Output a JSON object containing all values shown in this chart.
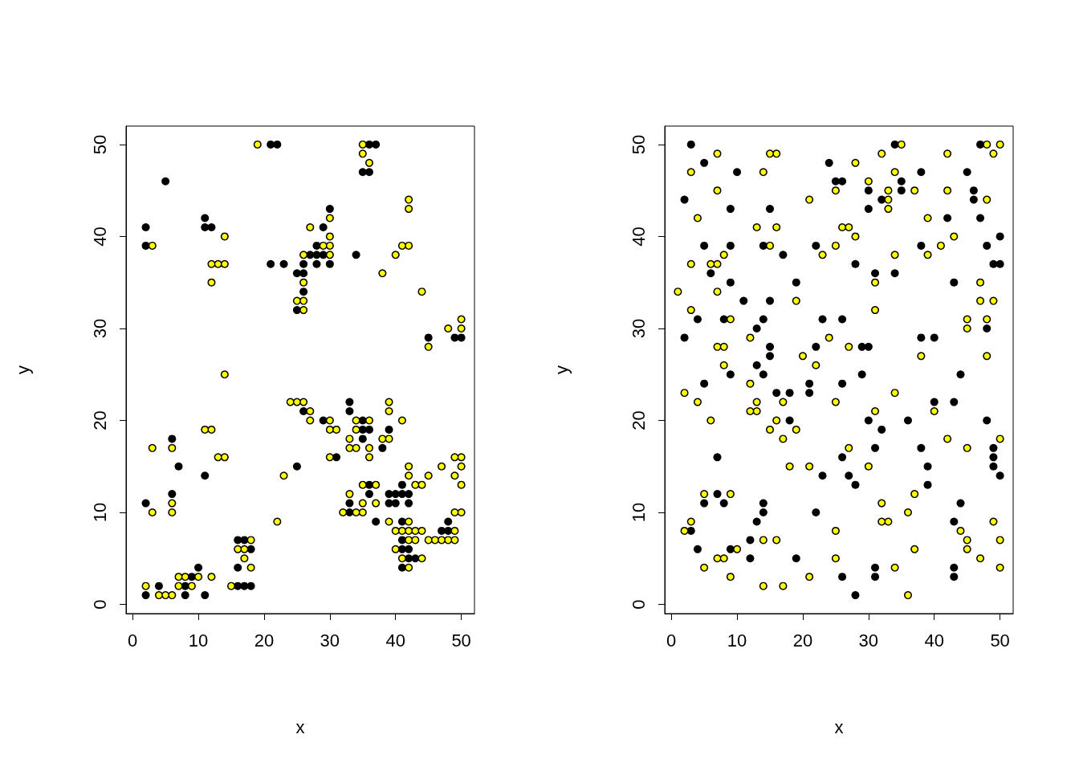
{
  "chart_data": [
    {
      "type": "scatter",
      "xlabel": "x",
      "ylabel": "y",
      "xlim": [
        -1,
        52
      ],
      "ylim": [
        -1,
        52
      ],
      "xticks": [
        0,
        10,
        20,
        30,
        40,
        50
      ],
      "yticks": [
        0,
        10,
        20,
        30,
        40,
        50
      ],
      "grid": false,
      "marker": "circle",
      "series": [
        {
          "color": "#000000",
          "x": [
            19,
            35,
            35,
            36,
            42,
            42,
            30,
            27,
            14,
            30,
            3,
            29,
            30,
            41,
            42,
            26,
            30,
            40,
            12,
            13,
            14,
            38,
            12,
            26,
            44,
            25,
            26,
            26,
            50,
            48,
            50,
            45,
            14,
            24,
            25,
            26,
            39,
            27,
            39,
            27,
            30,
            34,
            36,
            41,
            11,
            12,
            30,
            31,
            34,
            33,
            38,
            39,
            3,
            6,
            33,
            34,
            36,
            13,
            14,
            30,
            36,
            49,
            50,
            42,
            47,
            50,
            23,
            42,
            45,
            49,
            35,
            37,
            43,
            44,
            50,
            33,
            6,
            35,
            37,
            3,
            6,
            32,
            34,
            35,
            49,
            50,
            22,
            39,
            42,
            40,
            41,
            42,
            43,
            44,
            49,
            18,
            42,
            43,
            45,
            46,
            47,
            48,
            49,
            16,
            17,
            40,
            17,
            41,
            44,
            18,
            42,
            7,
            8,
            10,
            12,
            2,
            7,
            9,
            15,
            4,
            5,
            6,
            21,
            22,
            36,
            37,
            35,
            36,
            5,
            30,
            11,
            2,
            11,
            12,
            29,
            2,
            28,
            27,
            28,
            29,
            34,
            21,
            23,
            26,
            28,
            30,
            25,
            26,
            26,
            25,
            45,
            49,
            50,
            33,
            26,
            33,
            29,
            35,
            35,
            36,
            39,
            6,
            35,
            38,
            31,
            7,
            25,
            11,
            36,
            41,
            6,
            36,
            39,
            40,
            41,
            42,
            2,
            33,
            39,
            40,
            42,
            33,
            37,
            41,
            48,
            47,
            48,
            16,
            17,
            41,
            18,
            41,
            42,
            42,
            43,
            10,
            16,
            41,
            9,
            4,
            8,
            16,
            17,
            18,
            2,
            8,
            11
          ],
          "values": [
            50,
            50,
            49,
            48,
            44,
            43,
            42,
            41,
            40,
            40,
            39,
            39,
            39,
            39,
            39,
            38,
            38,
            38,
            37,
            37,
            37,
            36,
            35,
            35,
            34,
            33,
            33,
            32,
            31,
            30,
            30,
            28,
            25,
            22,
            22,
            22,
            22,
            21,
            21,
            20,
            20,
            20,
            20,
            20,
            19,
            19,
            19,
            19,
            19,
            18,
            18,
            18,
            17,
            17,
            17,
            17,
            17,
            16,
            16,
            16,
            16,
            16,
            16,
            15,
            15,
            15,
            14,
            14,
            14,
            14,
            13,
            13,
            13,
            13,
            13,
            12,
            11,
            11,
            11,
            10,
            10,
            10,
            10,
            10,
            10,
            10,
            9,
            9,
            9,
            8,
            8,
            8,
            8,
            8,
            8,
            7,
            7,
            7,
            7,
            7,
            7,
            7,
            7,
            6,
            6,
            6,
            5,
            5,
            5,
            4,
            4,
            3,
            3,
            3,
            3,
            2,
            2,
            2,
            2,
            1,
            1,
            1,
            50,
            50,
            50,
            50,
            47,
            47,
            46,
            43,
            42,
            41,
            41,
            41,
            41,
            39,
            39,
            38,
            38,
            38,
            38,
            37,
            37,
            37,
            37,
            37,
            36,
            36,
            34,
            32,
            29,
            29,
            29,
            22,
            21,
            21,
            20,
            20,
            19,
            19,
            19,
            18,
            18,
            17,
            16,
            15,
            15,
            14,
            13,
            13,
            12,
            12,
            12,
            12,
            12,
            12,
            11,
            11,
            11,
            11,
            11,
            10,
            9,
            9,
            9,
            8,
            8,
            7,
            7,
            7,
            6,
            6,
            6,
            5,
            5,
            4,
            4,
            4,
            3,
            2,
            2,
            2,
            2,
            2,
            1,
            1,
            1
          ]
        },
        {
          "color": "#ffff00",
          "x": [
            19,
            35,
            35,
            36,
            42,
            42,
            30,
            27,
            14,
            30,
            3,
            29,
            30,
            41,
            42,
            26,
            30,
            40,
            12,
            13,
            14,
            38,
            12,
            26,
            44,
            25,
            26,
            26,
            50,
            48,
            50,
            45,
            14,
            24,
            25,
            26,
            39,
            27,
            39,
            27,
            30,
            34,
            36,
            41,
            11,
            12,
            30,
            31,
            34,
            33,
            38,
            39,
            3,
            6,
            33,
            34,
            36,
            13,
            14,
            30,
            36,
            49,
            50,
            42,
            47,
            50,
            23,
            42,
            45,
            49,
            35,
            37,
            43,
            44,
            50,
            33,
            6,
            35,
            37,
            3,
            6,
            32,
            34,
            35,
            49,
            50,
            22,
            39,
            42,
            40,
            41,
            42,
            43,
            44,
            49,
            18,
            42,
            43,
            45,
            46,
            47,
            48,
            49,
            16,
            17,
            40,
            17,
            41,
            44,
            18,
            42,
            7,
            8,
            10,
            12,
            2,
            7,
            9,
            15,
            4,
            5,
            6
          ],
          "values": [
            50,
            50,
            49,
            48,
            44,
            43,
            42,
            41,
            40,
            40,
            39,
            39,
            39,
            39,
            39,
            38,
            38,
            38,
            37,
            37,
            37,
            36,
            35,
            35,
            34,
            33,
            33,
            32,
            31,
            30,
            30,
            28,
            25,
            22,
            22,
            22,
            22,
            21,
            21,
            20,
            20,
            20,
            20,
            20,
            19,
            19,
            19,
            19,
            19,
            18,
            18,
            18,
            17,
            17,
            17,
            17,
            17,
            16,
            16,
            16,
            16,
            16,
            16,
            15,
            15,
            15,
            14,
            14,
            14,
            14,
            13,
            13,
            13,
            13,
            13,
            12,
            11,
            11,
            11,
            10,
            10,
            10,
            10,
            10,
            10,
            10,
            9,
            9,
            9,
            8,
            8,
            8,
            8,
            8,
            8,
            7,
            7,
            7,
            7,
            7,
            7,
            7,
            7,
            6,
            6,
            6,
            5,
            5,
            5,
            4,
            4,
            3,
            3,
            3,
            3,
            2,
            2,
            2,
            2,
            1,
            1,
            1
          ]
        }
      ]
    },
    {
      "type": "scatter",
      "xlabel": "x",
      "ylabel": "y",
      "xlim": [
        -1,
        52
      ],
      "ylim": [
        -1,
        52
      ],
      "xticks": [
        0,
        10,
        20,
        30,
        40,
        50
      ],
      "yticks": [
        0,
        10,
        20,
        30,
        40,
        50
      ],
      "grid": false,
      "marker": "circle",
      "series": [
        {
          "color": "#000000",
          "x": [
            35,
            48,
            50,
            7,
            15,
            16,
            32,
            42,
            49,
            28,
            3,
            14,
            34,
            30,
            7,
            25,
            33,
            37,
            42,
            21,
            33,
            48,
            33,
            4,
            39,
            13,
            16,
            26,
            27,
            28,
            43,
            15,
            25,
            41,
            8,
            23,
            34,
            39,
            3,
            6,
            7,
            31,
            47,
            1,
            7,
            19,
            47,
            49,
            3,
            31,
            9,
            45,
            48,
            45,
            12,
            24,
            7,
            8,
            27,
            20,
            38,
            48,
            8,
            22,
            12,
            2,
            34,
            4,
            13,
            17,
            25,
            12,
            13,
            31,
            40,
            6,
            16,
            15,
            19,
            17,
            42,
            50,
            27,
            45,
            18,
            21,
            30,
            5,
            9,
            37,
            32,
            36,
            3,
            32,
            33,
            49,
            2,
            25,
            44,
            14,
            16,
            45,
            50,
            10,
            37,
            45,
            7,
            8,
            25,
            47,
            5,
            34,
            50,
            9,
            21,
            14,
            17,
            36,
            3,
            34,
            47,
            5,
            24,
            10,
            38,
            45,
            25,
            26,
            35,
            30,
            35,
            46,
            2,
            32,
            46,
            9,
            15,
            30,
            42,
            47,
            50,
            5,
            9,
            14,
            22,
            38,
            48,
            17,
            28,
            49,
            50,
            6,
            31,
            34,
            9,
            19,
            43,
            11,
            15,
            4,
            8,
            14,
            23,
            26,
            13,
            48,
            2,
            38,
            40,
            15,
            22,
            29,
            30,
            15,
            13,
            9,
            14,
            29,
            44,
            5,
            21,
            26,
            16,
            18,
            21,
            40,
            43,
            18,
            30,
            36,
            48,
            32,
            31,
            38,
            49,
            7,
            26,
            49,
            39,
            49,
            23,
            27,
            50,
            28,
            39,
            7,
            5,
            8,
            14,
            44,
            14,
            22,
            13,
            43,
            3,
            12,
            4,
            9,
            12,
            19,
            31,
            43,
            26,
            31,
            43,
            28
          ],
          "values": [
            50,
            50,
            50,
            49,
            49,
            49,
            49,
            49,
            49,
            48,
            47,
            47,
            47,
            46,
            45,
            45,
            45,
            45,
            45,
            44,
            44,
            44,
            43,
            42,
            42,
            41,
            41,
            41,
            41,
            40,
            40,
            39,
            39,
            39,
            38,
            38,
            38,
            38,
            37,
            37,
            37,
            35,
            35,
            34,
            34,
            33,
            33,
            33,
            32,
            32,
            31,
            31,
            31,
            30,
            29,
            29,
            28,
            28,
            28,
            27,
            27,
            27,
            26,
            26,
            24,
            23,
            23,
            22,
            22,
            22,
            22,
            21,
            21,
            21,
            21,
            20,
            20,
            19,
            19,
            18,
            18,
            18,
            17,
            17,
            15,
            15,
            15,
            12,
            12,
            12,
            11,
            10,
            9,
            9,
            9,
            9,
            8,
            8,
            8,
            7,
            7,
            7,
            7,
            6,
            6,
            6,
            5,
            5,
            5,
            5,
            4,
            4,
            4,
            3,
            3,
            2,
            2,
            1,
            50,
            50,
            50,
            48,
            48,
            47,
            47,
            47,
            46,
            46,
            46,
            45,
            45,
            45,
            44,
            44,
            44,
            43,
            43,
            43,
            42,
            42,
            40,
            39,
            39,
            39,
            39,
            39,
            39,
            38,
            37,
            37,
            37,
            36,
            36,
            36,
            35,
            35,
            35,
            33,
            33,
            31,
            31,
            31,
            31,
            31,
            30,
            30,
            29,
            29,
            29,
            28,
            28,
            28,
            28,
            27,
            26,
            25,
            25,
            25,
            25,
            24,
            24,
            24,
            23,
            23,
            23,
            22,
            22,
            20,
            20,
            20,
            20,
            19,
            17,
            17,
            17,
            16,
            16,
            16,
            15,
            15,
            14,
            14,
            14,
            13,
            13,
            12,
            11,
            11,
            11,
            11,
            10,
            10,
            9,
            9,
            8,
            7,
            6,
            6,
            5,
            5,
            4,
            4,
            3,
            3,
            3,
            1
          ]
        },
        {
          "color": "#ffff00",
          "x": [
            35,
            48,
            50,
            7,
            15,
            16,
            32,
            42,
            49,
            28,
            3,
            14,
            34,
            30,
            7,
            25,
            33,
            37,
            42,
            21,
            33,
            48,
            33,
            4,
            39,
            13,
            16,
            26,
            27,
            28,
            43,
            15,
            25,
            41,
            8,
            23,
            34,
            39,
            3,
            6,
            7,
            31,
            47,
            1,
            7,
            19,
            47,
            49,
            3,
            31,
            9,
            45,
            48,
            45,
            12,
            24,
            7,
            8,
            27,
            20,
            38,
            48,
            8,
            22,
            12,
            2,
            34,
            4,
            13,
            17,
            25,
            12,
            13,
            31,
            40,
            6,
            16,
            15,
            19,
            17,
            42,
            50,
            27,
            45,
            18,
            21,
            30,
            5,
            9,
            37,
            32,
            36,
            3,
            32,
            33,
            49,
            2,
            25,
            44,
            14,
            16,
            45,
            50,
            10,
            37,
            45,
            7,
            8,
            25,
            47,
            5,
            34,
            50,
            9,
            21,
            14,
            17,
            36
          ],
          "values": [
            50,
            50,
            50,
            49,
            49,
            49,
            49,
            49,
            49,
            48,
            47,
            47,
            47,
            46,
            45,
            45,
            45,
            45,
            45,
            44,
            44,
            44,
            43,
            42,
            42,
            41,
            41,
            41,
            41,
            40,
            40,
            39,
            39,
            39,
            38,
            38,
            38,
            38,
            37,
            37,
            37,
            35,
            35,
            34,
            34,
            33,
            33,
            33,
            32,
            32,
            31,
            31,
            31,
            30,
            29,
            29,
            28,
            28,
            28,
            27,
            27,
            27,
            26,
            26,
            24,
            23,
            23,
            22,
            22,
            22,
            22,
            21,
            21,
            21,
            21,
            20,
            20,
            19,
            19,
            18,
            18,
            18,
            17,
            17,
            15,
            15,
            15,
            12,
            12,
            12,
            11,
            10,
            9,
            9,
            9,
            9,
            8,
            8,
            8,
            7,
            7,
            7,
            7,
            6,
            6,
            6,
            5,
            5,
            5,
            5,
            4,
            4,
            4,
            3,
            3,
            2,
            2,
            1
          ]
        }
      ]
    }
  ]
}
